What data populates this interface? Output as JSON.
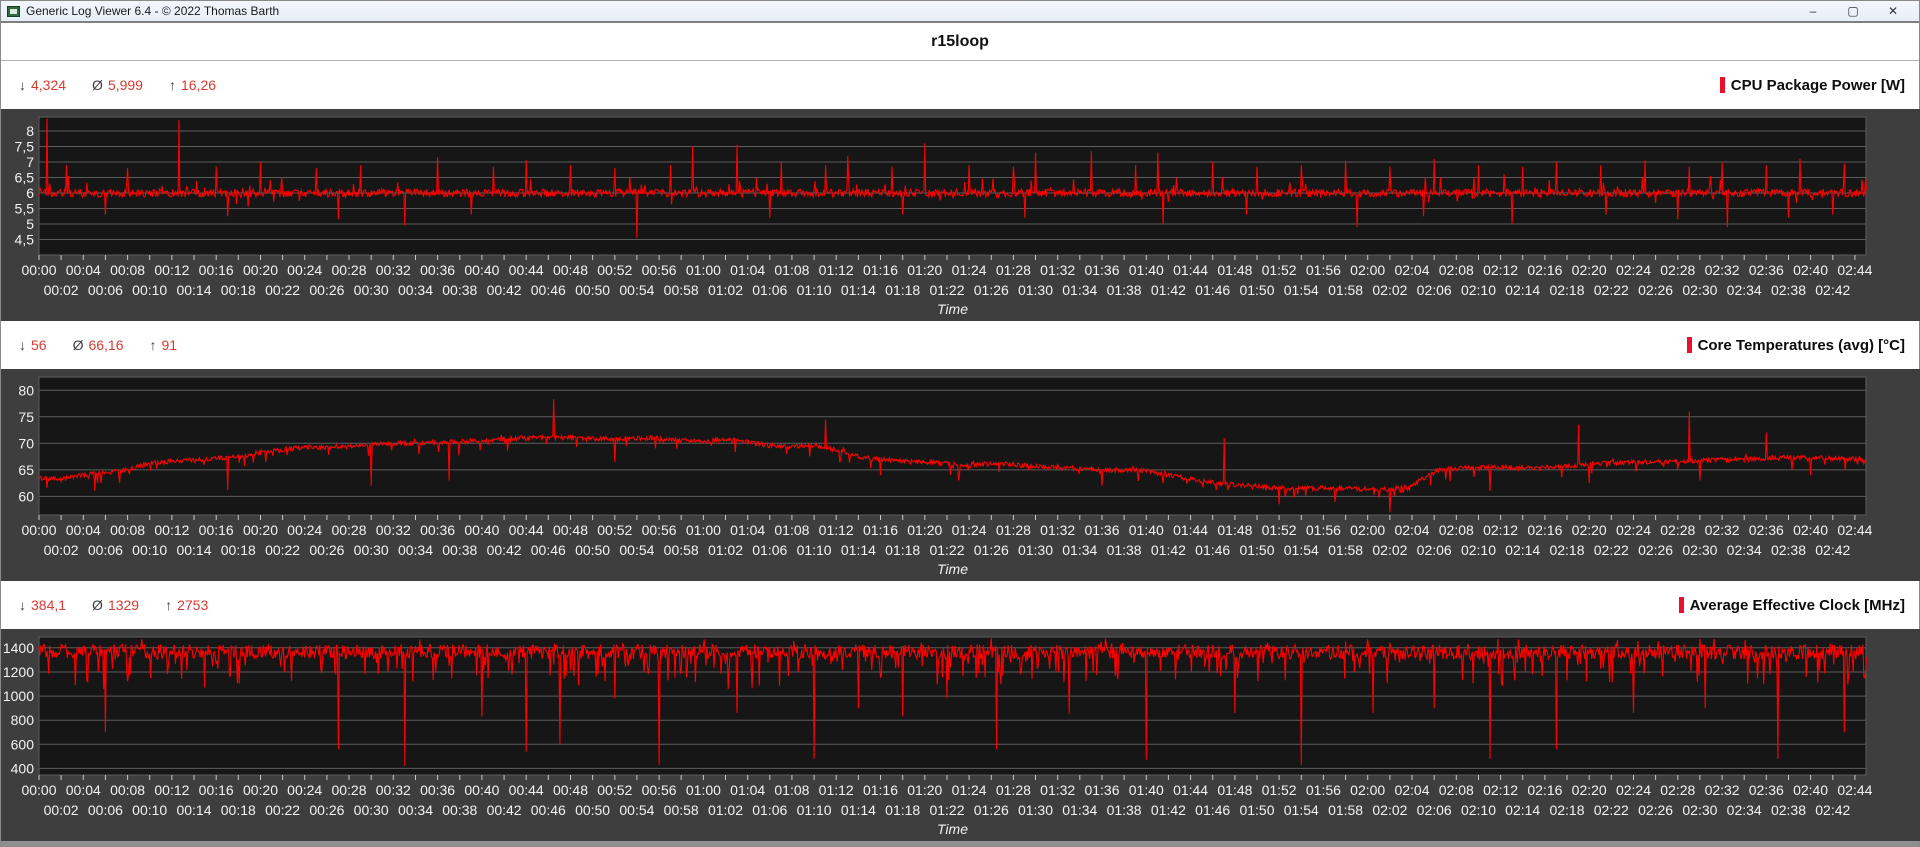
{
  "window": {
    "title": "Generic Log Viewer 6.4 - © 2022 Thomas Barth",
    "controls": {
      "minimize": "–",
      "maximize": "▢",
      "close": "✕"
    }
  },
  "header": {
    "title": "r15loop"
  },
  "stats_symbols": {
    "min": "↓",
    "avg": "Ø",
    "max": "↑"
  },
  "time_axis": {
    "label": "Time",
    "t_start": 0,
    "t_end": 165,
    "tick_step_minutes": 2,
    "row1": [
      "00:00",
      "00:04",
      "00:08",
      "00:12",
      "00:16",
      "00:20",
      "00:24",
      "00:28",
      "00:32",
      "00:36",
      "00:40",
      "00:44",
      "00:48",
      "00:52",
      "00:56",
      "01:00",
      "01:04",
      "01:08",
      "01:12",
      "01:16",
      "01:20",
      "01:24",
      "01:28",
      "01:32",
      "01:36",
      "01:40",
      "01:44",
      "01:48",
      "01:52",
      "01:56",
      "02:00",
      "02:04",
      "02:08",
      "02:12",
      "02:16",
      "02:20",
      "02:24",
      "02:28",
      "02:32",
      "02:36",
      "02:40",
      "02:44"
    ],
    "row2": [
      "00:02",
      "00:06",
      "00:10",
      "00:14",
      "00:18",
      "00:22",
      "00:26",
      "00:30",
      "00:34",
      "00:38",
      "00:42",
      "00:46",
      "00:50",
      "00:54",
      "00:58",
      "01:02",
      "01:06",
      "01:10",
      "01:14",
      "01:18",
      "01:22",
      "01:26",
      "01:30",
      "01:34",
      "01:38",
      "01:42",
      "01:46",
      "01:50",
      "01:54",
      "01:58",
      "02:02",
      "02:06",
      "02:10",
      "02:14",
      "02:18",
      "02:22",
      "02:26",
      "02:30",
      "02:34",
      "02:38",
      "02:42"
    ]
  },
  "charts": [
    {
      "legend": "CPU Package Power [W]",
      "stats": {
        "min": "4,324",
        "avg": "5,999",
        "max": "16,26"
      }
    },
    {
      "legend": "Core Temperatures (avg) [°C]",
      "stats": {
        "min": "56",
        "avg": "66,16",
        "max": "91"
      }
    },
    {
      "legend": "Average Effective Clock [MHz]",
      "stats": {
        "min": "384,1",
        "avg": "1329",
        "max": "2753"
      }
    }
  ],
  "colors": {
    "series": "#ff0000",
    "panel_bg": "#3e3e3e",
    "plot_bg": "#161616",
    "grid": "#5c5c5c",
    "axis_text": "#f2f2f2",
    "tick": "#c8c8c8",
    "stats_value": "#d93a32",
    "legend_bar": "#e8112d"
  },
  "chart_data": [
    {
      "type": "line",
      "title": "CPU Package Power [W]",
      "xlabel": "Time",
      "x_range_minutes": [
        0,
        165
      ],
      "ylim": [
        4.0,
        8.45
      ],
      "yticks": [
        {
          "v": 8,
          "label": "8"
        },
        {
          "v": 7.5,
          "label": "7,5"
        },
        {
          "v": 7,
          "label": "7"
        },
        {
          "v": 6.5,
          "label": "6,5"
        },
        {
          "v": 6,
          "label": "6"
        },
        {
          "v": 5.5,
          "label": "5,5"
        },
        {
          "v": 5,
          "label": "5"
        },
        {
          "v": 4.5,
          "label": "4,5"
        }
      ],
      "summary": {
        "min": 4.324,
        "avg": 5.999,
        "max": 16.26
      },
      "baseline_points": [
        [
          0,
          6.0
        ],
        [
          165,
          6.0
        ]
      ],
      "noise": {
        "amp": 0.13,
        "up_p": 0.05,
        "up_max": 0.5,
        "down_p": 0.02,
        "down_max": 0.35
      },
      "spikes_up": [
        [
          0.7,
          8.4
        ],
        [
          2.5,
          6.9
        ],
        [
          8,
          6.8
        ],
        [
          12.6,
          8.35
        ],
        [
          16,
          6.85
        ],
        [
          20,
          7.0
        ],
        [
          25,
          6.8
        ],
        [
          29,
          6.9
        ],
        [
          36,
          7.15
        ],
        [
          41,
          6.85
        ],
        [
          44,
          7.05
        ],
        [
          48,
          6.9
        ],
        [
          52,
          6.8
        ],
        [
          57,
          6.9
        ],
        [
          59,
          7.5
        ],
        [
          63,
          7.55
        ],
        [
          67,
          7.0
        ],
        [
          71,
          6.9
        ],
        [
          73,
          7.2
        ],
        [
          77,
          6.85
        ],
        [
          80,
          7.6
        ],
        [
          84,
          6.9
        ],
        [
          88,
          6.85
        ],
        [
          90,
          7.3
        ],
        [
          95,
          7.35
        ],
        [
          99,
          6.9
        ],
        [
          101,
          7.3
        ],
        [
          106,
          7.0
        ],
        [
          110,
          6.85
        ],
        [
          114,
          6.9
        ],
        [
          118,
          7.05
        ],
        [
          122,
          6.85
        ],
        [
          126,
          7.1
        ],
        [
          130,
          6.9
        ],
        [
          134,
          6.85
        ],
        [
          137,
          7.0
        ],
        [
          141,
          6.9
        ],
        [
          145,
          7.05
        ],
        [
          149,
          6.85
        ],
        [
          152,
          7.0
        ],
        [
          156,
          6.9
        ],
        [
          159,
          7.1
        ],
        [
          163,
          6.95
        ]
      ],
      "spikes_down": [
        [
          6,
          5.3
        ],
        [
          17,
          5.25
        ],
        [
          27,
          5.15
        ],
        [
          33,
          4.95
        ],
        [
          39,
          5.3
        ],
        [
          54,
          4.55
        ],
        [
          66,
          5.2
        ],
        [
          78,
          5.3
        ],
        [
          89,
          5.2
        ],
        [
          101.5,
          5.0
        ],
        [
          109,
          5.3
        ],
        [
          119,
          4.9
        ],
        [
          125,
          5.25
        ],
        [
          133,
          5.0
        ],
        [
          141.5,
          5.3
        ],
        [
          148,
          5.15
        ],
        [
          152.5,
          4.9
        ],
        [
          158,
          5.2
        ],
        [
          162,
          5.3
        ]
      ]
    },
    {
      "type": "line",
      "title": "Core Temperatures (avg) [°C]",
      "xlabel": "Time",
      "x_range_minutes": [
        0,
        165
      ],
      "ylim": [
        56.5,
        82.5
      ],
      "yticks": [
        {
          "v": 80,
          "label": "80"
        },
        {
          "v": 75,
          "label": "75"
        },
        {
          "v": 70,
          "label": "70"
        },
        {
          "v": 65,
          "label": "65"
        },
        {
          "v": 60,
          "label": "60"
        }
      ],
      "summary": {
        "min": 56,
        "avg": 66.16,
        "max": 91
      },
      "baseline_points": [
        [
          0,
          63.5
        ],
        [
          2,
          63.2
        ],
        [
          4,
          64.0
        ],
        [
          6,
          64.5
        ],
        [
          8,
          65.0
        ],
        [
          10,
          66.3
        ],
        [
          12,
          66.6
        ],
        [
          14,
          66.8
        ],
        [
          16,
          67.2
        ],
        [
          18,
          67.5
        ],
        [
          20,
          68.3
        ],
        [
          22,
          68.8
        ],
        [
          24,
          69.3
        ],
        [
          26,
          69.3
        ],
        [
          28,
          69.4
        ],
        [
          30,
          69.8
        ],
        [
          32,
          70.0
        ],
        [
          34,
          70.0
        ],
        [
          36,
          70.2
        ],
        [
          38,
          70.3
        ],
        [
          40,
          70.5
        ],
        [
          42,
          70.8
        ],
        [
          44,
          71.0
        ],
        [
          46,
          71.2
        ],
        [
          48,
          71.0
        ],
        [
          50,
          70.8
        ],
        [
          52,
          70.9
        ],
        [
          54,
          71.0
        ],
        [
          56,
          71.0
        ],
        [
          58,
          70.6
        ],
        [
          60,
          70.4
        ],
        [
          62,
          70.8
        ],
        [
          64,
          70.2
        ],
        [
          66,
          69.6
        ],
        [
          68,
          69.4
        ],
        [
          70,
          69.7
        ],
        [
          72,
          68.8
        ],
        [
          74,
          67.5
        ],
        [
          76,
          67.0
        ],
        [
          78,
          66.6
        ],
        [
          80,
          66.4
        ],
        [
          82,
          66.2
        ],
        [
          84,
          66.0
        ],
        [
          86,
          66.1
        ],
        [
          88,
          66.0
        ],
        [
          90,
          65.6
        ],
        [
          92,
          65.4
        ],
        [
          94,
          65.2
        ],
        [
          96,
          65.0
        ],
        [
          98,
          65.0
        ],
        [
          100,
          64.8
        ],
        [
          102,
          64.0
        ],
        [
          104,
          63.3
        ],
        [
          106,
          62.6
        ],
        [
          108,
          62.2
        ],
        [
          110,
          61.8
        ],
        [
          112,
          61.6
        ],
        [
          114,
          61.5
        ],
        [
          116,
          61.6
        ],
        [
          118,
          61.5
        ],
        [
          120,
          61.4
        ],
        [
          122,
          61.3
        ],
        [
          124,
          62.0
        ],
        [
          126,
          64.8
        ],
        [
          128,
          65.3
        ],
        [
          130,
          65.4
        ],
        [
          132,
          65.5
        ],
        [
          134,
          65.4
        ],
        [
          136,
          65.5
        ],
        [
          138,
          65.8
        ],
        [
          140,
          66.0
        ],
        [
          142,
          66.3
        ],
        [
          144,
          66.5
        ],
        [
          146,
          66.4
        ],
        [
          148,
          66.6
        ],
        [
          150,
          66.8
        ],
        [
          152,
          67.0
        ],
        [
          154,
          67.0
        ],
        [
          156,
          67.2
        ],
        [
          158,
          67.3
        ],
        [
          160,
          67.4
        ],
        [
          162,
          67.2
        ],
        [
          165,
          67.0
        ]
      ],
      "noise": {
        "amp": 0.45,
        "up_p": 0.02,
        "up_max": 0.8,
        "down_p": 0.06,
        "down_max": 2.2
      },
      "spikes_up": [
        [
          46.5,
          78.3
        ],
        [
          71,
          74.5
        ],
        [
          107,
          71.0
        ],
        [
          139,
          73.5
        ],
        [
          149,
          76.0
        ],
        [
          156,
          72.0
        ]
      ],
      "spikes_down": [
        [
          5,
          61.0
        ],
        [
          17,
          61.2
        ],
        [
          30,
          62.0
        ],
        [
          37,
          63.0
        ],
        [
          52,
          66.5
        ],
        [
          76,
          64.0
        ],
        [
          83,
          63.0
        ],
        [
          96,
          62.0
        ],
        [
          112,
          58.5
        ],
        [
          117,
          59.0
        ],
        [
          122,
          57.0
        ],
        [
          131,
          61.0
        ],
        [
          140,
          62.5
        ],
        [
          150,
          63.0
        ],
        [
          160,
          64.0
        ]
      ]
    },
    {
      "type": "line",
      "title": "Average Effective Clock [MHz]",
      "xlabel": "Time",
      "x_range_minutes": [
        0,
        165
      ],
      "ylim": [
        345,
        1490
      ],
      "yticks": [
        {
          "v": 1400,
          "label": "1400"
        },
        {
          "v": 1200,
          "label": "1200"
        },
        {
          "v": 1000,
          "label": "1000"
        },
        {
          "v": 800,
          "label": "800"
        },
        {
          "v": 600,
          "label": "600"
        },
        {
          "v": 400,
          "label": "400"
        }
      ],
      "summary": {
        "min": 384.1,
        "avg": 1329,
        "max": 2753
      },
      "baseline_points": [
        [
          0,
          1370
        ],
        [
          165,
          1365
        ]
      ],
      "noise": {
        "amp": 60,
        "up_p": 0.05,
        "up_max": 60,
        "down_p": 0.16,
        "down_max": 260
      },
      "spikes_up": [
        [
          86,
          1480
        ],
        [
          120,
          1470
        ],
        [
          150,
          1475
        ]
      ],
      "spikes_down": [
        [
          6,
          700
        ],
        [
          27,
          560
        ],
        [
          33,
          420
        ],
        [
          40,
          830
        ],
        [
          44,
          540
        ],
        [
          47,
          600
        ],
        [
          52,
          980
        ],
        [
          56,
          430
        ],
        [
          63,
          860
        ],
        [
          70,
          480
        ],
        [
          74,
          900
        ],
        [
          78,
          830
        ],
        [
          82,
          980
        ],
        [
          86.5,
          560
        ],
        [
          93,
          850
        ],
        [
          100,
          470
        ],
        [
          108,
          860
        ],
        [
          114,
          430
        ],
        [
          120.5,
          860
        ],
        [
          126,
          900
        ],
        [
          131,
          480
        ],
        [
          137,
          560
        ],
        [
          144,
          860
        ],
        [
          150.5,
          900
        ],
        [
          157,
          480
        ],
        [
          163,
          700
        ]
      ]
    }
  ]
}
